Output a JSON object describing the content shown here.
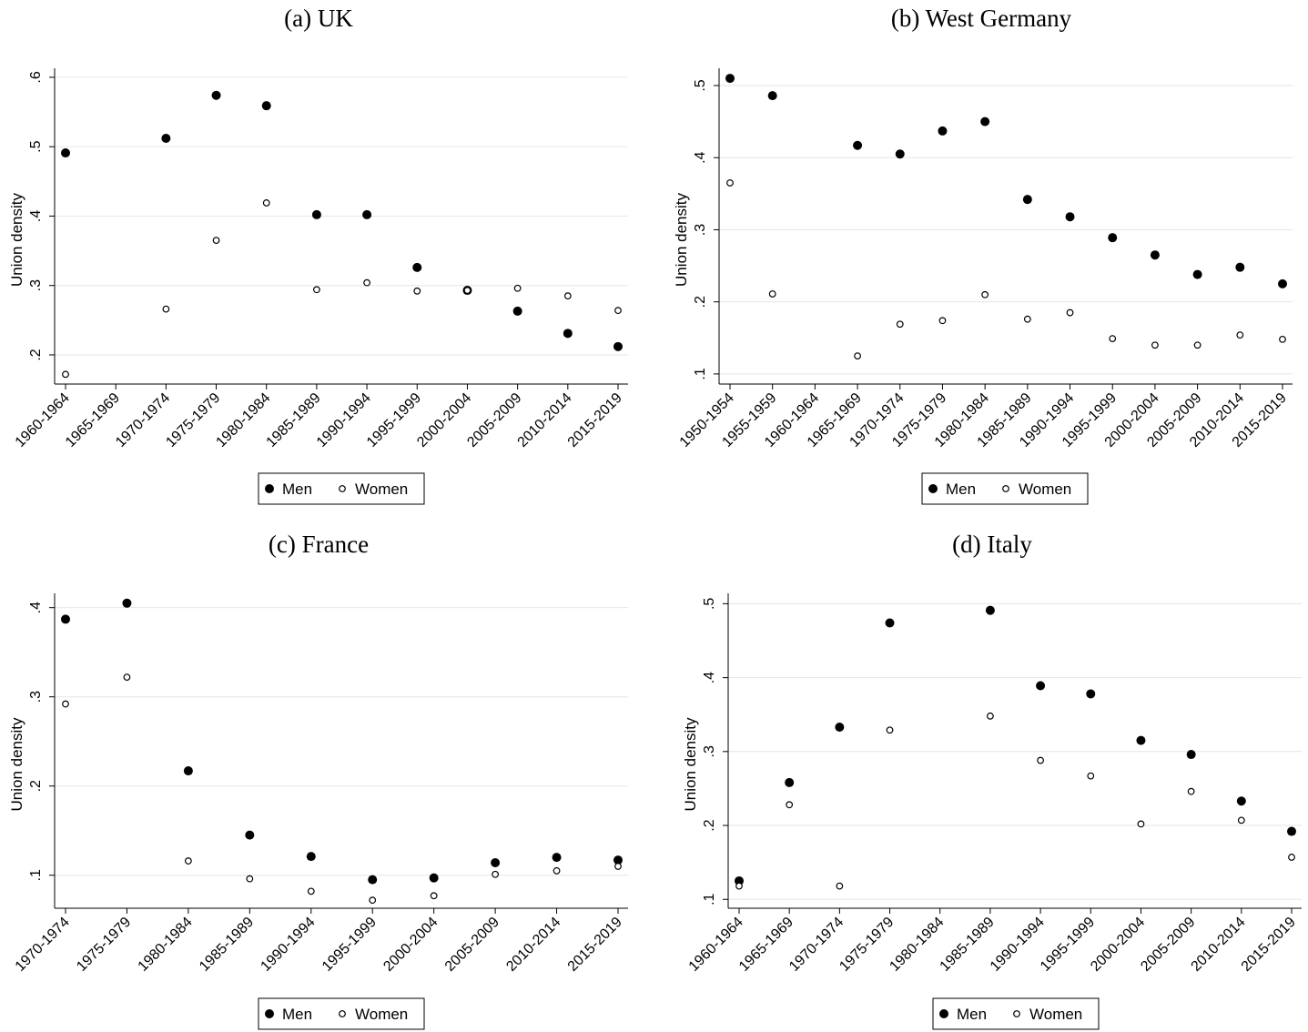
{
  "chart_data": [
    {
      "type": "scatter",
      "title": "(a) UK",
      "y_label": "Union density",
      "grid": true,
      "legend": "bottom",
      "categories": [
        "1960-1964",
        "1965-1969",
        "1970-1974",
        "1975-1979",
        "1980-1984",
        "1985-1989",
        "1990-1994",
        "1995-1999",
        "2000-2004",
        "2005-2009",
        "2010-2014",
        "2015-2019"
      ],
      "ylim": [
        0.158,
        0.613
      ],
      "yticks": [
        {
          "value": 0.2,
          "label": ".2"
        },
        {
          "value": 0.3,
          "label": ".3"
        },
        {
          "value": 0.4,
          "label": ".4"
        },
        {
          "value": 0.5,
          "label": ".5"
        },
        {
          "value": 0.6,
          "label": ".6"
        }
      ],
      "series": [
        {
          "name": "Men",
          "color": "#000000",
          "marker": "filled",
          "values": [
            0.491,
            null,
            0.512,
            0.574,
            0.559,
            0.402,
            0.402,
            0.326,
            0.293,
            0.263,
            0.231,
            0.212
          ]
        },
        {
          "name": "Women",
          "color": "#000000",
          "marker": "hollow",
          "values": [
            0.172,
            null,
            0.266,
            0.365,
            0.419,
            0.294,
            0.304,
            0.292,
            0.293,
            0.296,
            0.285,
            0.264
          ]
        }
      ]
    },
    {
      "type": "scatter",
      "title": "(b) West Germany",
      "y_label": "Union density",
      "grid": true,
      "legend": "bottom",
      "categories": [
        "1950-1954",
        "1955-1959",
        "1960-1964",
        "1965-1969",
        "1970-1974",
        "1975-1979",
        "1980-1984",
        "1985-1989",
        "1990-1994",
        "1995-1999",
        "2000-2004",
        "2005-2009",
        "2010-2014",
        "2015-2019"
      ],
      "ylim": [
        0.086,
        0.524
      ],
      "yticks": [
        {
          "value": 0.1,
          "label": ".1"
        },
        {
          "value": 0.2,
          "label": ".2"
        },
        {
          "value": 0.3,
          "label": ".3"
        },
        {
          "value": 0.4,
          "label": ".4"
        },
        {
          "value": 0.5,
          "label": ".5"
        }
      ],
      "series": [
        {
          "name": "Men",
          "color": "#000000",
          "marker": "filled",
          "values": [
            0.51,
            0.486,
            null,
            0.417,
            0.405,
            0.437,
            0.45,
            0.342,
            0.318,
            0.289,
            0.265,
            0.238,
            0.248,
            0.225
          ]
        },
        {
          "name": "Women",
          "color": "#000000",
          "marker": "hollow",
          "values": [
            0.365,
            0.211,
            null,
            0.125,
            0.169,
            0.174,
            0.21,
            0.176,
            0.185,
            0.149,
            0.14,
            0.14,
            0.154,
            0.148
          ]
        }
      ]
    },
    {
      "type": "scatter",
      "title": "(c) France",
      "y_label": "Union density",
      "grid": true,
      "legend": "bottom",
      "categories": [
        "1970-1974",
        "1975-1979",
        "1980-1984",
        "1985-1989",
        "1990-1994",
        "1995-1999",
        "2000-2004",
        "2005-2009",
        "2010-2014",
        "2015-2019"
      ],
      "ylim": [
        0.063,
        0.416
      ],
      "yticks": [
        {
          "value": 0.1,
          "label": ".1"
        },
        {
          "value": 0.2,
          "label": ".2"
        },
        {
          "value": 0.3,
          "label": ".3"
        },
        {
          "value": 0.4,
          "label": ".4"
        }
      ],
      "series": [
        {
          "name": "Men",
          "color": "#000000",
          "marker": "filled",
          "values": [
            0.387,
            0.405,
            0.217,
            0.145,
            0.121,
            0.095,
            0.097,
            0.114,
            0.12,
            0.117
          ]
        },
        {
          "name": "Women",
          "color": "#000000",
          "marker": "hollow",
          "values": [
            0.292,
            0.322,
            0.116,
            0.096,
            0.082,
            0.072,
            0.077,
            0.101,
            0.105,
            0.11
          ]
        }
      ]
    },
    {
      "type": "scatter",
      "title": "(d) Italy",
      "y_label": "Union density",
      "grid": true,
      "legend": "bottom",
      "categories": [
        "1960-1964",
        "1965-1969",
        "1970-1974",
        "1975-1979",
        "1980-1984",
        "1985-1989",
        "1990-1994",
        "1995-1999",
        "2000-2004",
        "2005-2009",
        "2010-2014",
        "2015-2019"
      ],
      "ylim": [
        0.088,
        0.514
      ],
      "yticks": [
        {
          "value": 0.1,
          "label": ".1"
        },
        {
          "value": 0.2,
          "label": ".2"
        },
        {
          "value": 0.3,
          "label": ".3"
        },
        {
          "value": 0.4,
          "label": ".4"
        },
        {
          "value": 0.5,
          "label": ".5"
        }
      ],
      "series": [
        {
          "name": "Men",
          "color": "#000000",
          "marker": "filled",
          "values": [
            0.125,
            0.258,
            0.333,
            0.474,
            null,
            0.491,
            0.389,
            0.378,
            0.315,
            0.296,
            0.233,
            0.192
          ]
        },
        {
          "name": "Women",
          "color": "#000000",
          "marker": "hollow",
          "values": [
            0.118,
            0.228,
            0.118,
            0.329,
            null,
            0.348,
            0.288,
            0.267,
            0.202,
            0.246,
            0.207,
            0.157
          ]
        }
      ]
    }
  ]
}
